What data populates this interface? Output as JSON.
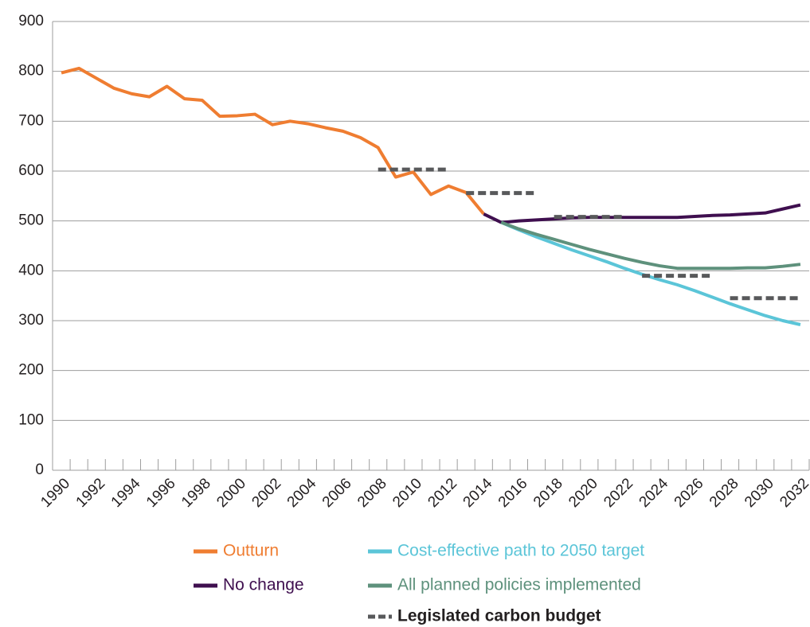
{
  "chart_data": {
    "type": "line",
    "categories": [
      "1990",
      null,
      "1992",
      null,
      "1994",
      null,
      "1996",
      null,
      "1998",
      null,
      "2000",
      null,
      "2002",
      null,
      "2004",
      null,
      "2006",
      null,
      "2008",
      null,
      "2010",
      null,
      "2012",
      null,
      "2014",
      null,
      "2016",
      null,
      "2018",
      null,
      "2020",
      null,
      "2022",
      null,
      "2024",
      null,
      "2026",
      null,
      "2028",
      null,
      "2030",
      null,
      "2032"
    ],
    "ylim": [
      0,
      900
    ],
    "yticks": [
      0,
      100,
      200,
      300,
      400,
      500,
      600,
      700,
      800,
      900
    ],
    "grid": true,
    "series": [
      {
        "name": "Outturn",
        "color": "#ef7d31",
        "values": [
          797,
          806,
          786,
          766,
          755,
          749,
          770,
          745,
          742,
          710,
          711,
          714,
          693,
          700,
          695,
          687,
          680,
          667,
          647,
          588,
          598,
          553,
          570,
          557,
          514,
          null,
          null,
          null,
          null,
          null,
          null,
          null,
          null,
          null,
          null,
          null,
          null,
          null,
          null,
          null,
          null,
          null,
          null
        ]
      },
      {
        "name": "No change",
        "color": "#3f0f4f",
        "values": [
          null,
          null,
          null,
          null,
          null,
          null,
          null,
          null,
          null,
          null,
          null,
          null,
          null,
          null,
          null,
          null,
          null,
          null,
          null,
          null,
          null,
          null,
          null,
          null,
          514,
          497,
          500,
          502,
          504,
          506,
          507,
          507,
          507,
          507,
          507,
          507,
          509,
          511,
          512,
          514,
          516,
          524,
          532
        ]
      },
      {
        "name": "Cost-effective path to 2050 target",
        "color": "#5bc5d8",
        "values": [
          null,
          null,
          null,
          null,
          null,
          null,
          null,
          null,
          null,
          null,
          null,
          null,
          null,
          null,
          null,
          null,
          null,
          null,
          null,
          null,
          null,
          null,
          null,
          null,
          null,
          497,
          482,
          468,
          455,
          442,
          430,
          418,
          405,
          393,
          382,
          372,
          360,
          347,
          334,
          322,
          310,
          300,
          292
        ]
      },
      {
        "name": "All planned policies implemented",
        "color": "#5e917c",
        "values": [
          null,
          null,
          null,
          null,
          null,
          null,
          null,
          null,
          null,
          null,
          null,
          null,
          null,
          null,
          null,
          null,
          null,
          null,
          null,
          null,
          null,
          null,
          null,
          null,
          null,
          497,
          484,
          473,
          463,
          453,
          443,
          434,
          425,
          417,
          410,
          405,
          405,
          405,
          405,
          406,
          406,
          409,
          413
        ]
      },
      {
        "name": "Legislated carbon budget",
        "color": "#58595b",
        "dashed": true,
        "values": [
          null,
          null,
          null,
          null,
          null,
          null,
          null,
          null,
          null,
          null,
          null,
          null,
          null,
          null,
          null,
          null,
          null,
          null,
          603,
          603,
          603,
          603,
          603,
          556,
          556,
          556,
          556,
          556,
          508,
          508,
          508,
          508,
          508,
          390,
          390,
          390,
          390,
          390,
          345,
          345,
          345,
          345,
          345
        ]
      }
    ]
  }
}
